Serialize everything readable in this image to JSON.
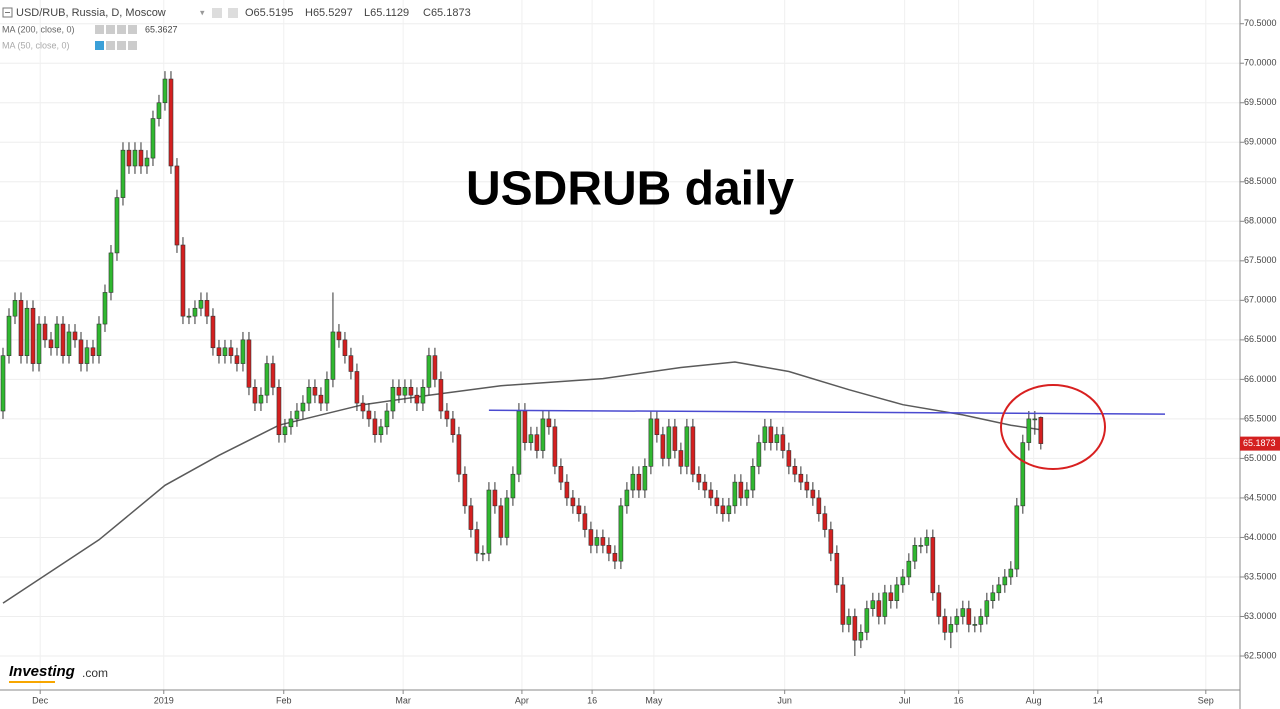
{
  "chart_data": {
    "type": "candlestick",
    "title": "USDRUB daily",
    "header": {
      "symbol": "USD/RUB, Russia, D, Moscow",
      "ohlc": [
        "O65.5195",
        "H65.5297",
        "L65.1129",
        "C65.1873"
      ]
    },
    "brand": {
      "name": "Investing",
      "suffix": ".com"
    },
    "up_color": "#30b830",
    "down_color": "#d42020",
    "candles": [
      [
        65.6,
        66.4,
        65.5,
        66.3
      ],
      [
        66.3,
        66.9,
        66.2,
        66.8
      ],
      [
        66.8,
        67.1,
        66.7,
        67.0
      ],
      [
        67.0,
        67.1,
        66.2,
        66.3
      ],
      [
        66.3,
        67.0,
        66.2,
        66.9
      ],
      [
        66.9,
        67.0,
        66.1,
        66.2
      ],
      [
        66.2,
        66.8,
        66.1,
        66.7
      ],
      [
        66.7,
        66.8,
        66.4,
        66.5
      ],
      [
        66.5,
        66.6,
        66.3,
        66.4
      ],
      [
        66.4,
        66.8,
        66.3,
        66.7
      ],
      [
        66.7,
        66.8,
        66.2,
        66.3
      ],
      [
        66.3,
        66.7,
        66.2,
        66.6
      ],
      [
        66.6,
        66.7,
        66.4,
        66.5
      ],
      [
        66.5,
        66.6,
        66.1,
        66.2
      ],
      [
        66.2,
        66.5,
        66.1,
        66.4
      ],
      [
        66.4,
        66.5,
        66.2,
        66.3
      ],
      [
        66.3,
        66.8,
        66.2,
        66.7
      ],
      [
        66.7,
        67.2,
        66.6,
        67.1
      ],
      [
        67.1,
        67.7,
        67.0,
        67.6
      ],
      [
        67.6,
        68.4,
        67.5,
        68.3
      ],
      [
        68.3,
        69.0,
        68.2,
        68.9
      ],
      [
        68.9,
        69.0,
        68.6,
        68.7
      ],
      [
        68.7,
        69.0,
        68.6,
        68.9
      ],
      [
        68.9,
        69.0,
        68.6,
        68.7
      ],
      [
        68.7,
        68.9,
        68.6,
        68.8
      ],
      [
        68.8,
        69.4,
        68.7,
        69.3
      ],
      [
        69.3,
        69.6,
        69.2,
        69.5
      ],
      [
        69.5,
        69.9,
        69.4,
        69.8
      ],
      [
        69.8,
        69.9,
        68.6,
        68.7
      ],
      [
        68.7,
        68.8,
        67.6,
        67.7
      ],
      [
        67.7,
        67.8,
        66.7,
        66.8
      ],
      [
        66.8,
        66.9,
        66.7,
        66.8
      ],
      [
        66.8,
        67.0,
        66.7,
        66.9
      ],
      [
        66.9,
        67.1,
        66.8,
        67.0
      ],
      [
        67.0,
        67.1,
        66.7,
        66.8
      ],
      [
        66.8,
        66.9,
        66.3,
        66.4
      ],
      [
        66.4,
        66.5,
        66.2,
        66.3
      ],
      [
        66.3,
        66.5,
        66.2,
        66.4
      ],
      [
        66.4,
        66.5,
        66.2,
        66.3
      ],
      [
        66.3,
        66.4,
        66.1,
        66.2
      ],
      [
        66.2,
        66.6,
        66.1,
        66.5
      ],
      [
        66.5,
        66.6,
        65.8,
        65.9
      ],
      [
        65.9,
        66.0,
        65.6,
        65.7
      ],
      [
        65.7,
        65.9,
        65.6,
        65.8
      ],
      [
        65.8,
        66.3,
        65.7,
        66.2
      ],
      [
        66.2,
        66.3,
        65.8,
        65.9
      ],
      [
        65.9,
        66.0,
        65.2,
        65.3
      ],
      [
        65.3,
        65.5,
        65.2,
        65.4
      ],
      [
        65.4,
        65.6,
        65.3,
        65.5
      ],
      [
        65.5,
        65.7,
        65.4,
        65.6
      ],
      [
        65.6,
        65.8,
        65.5,
        65.7
      ],
      [
        65.7,
        66.0,
        65.6,
        65.9
      ],
      [
        65.9,
        66.0,
        65.7,
        65.8
      ],
      [
        65.8,
        65.9,
        65.6,
        65.7
      ],
      [
        65.7,
        66.1,
        65.6,
        66.0
      ],
      [
        66.0,
        67.1,
        65.9,
        66.6
      ],
      [
        66.6,
        66.7,
        66.4,
        66.5
      ],
      [
        66.5,
        66.6,
        66.2,
        66.3
      ],
      [
        66.3,
        66.4,
        66.0,
        66.1
      ],
      [
        66.1,
        66.2,
        65.6,
        65.7
      ],
      [
        65.7,
        65.8,
        65.5,
        65.6
      ],
      [
        65.6,
        65.7,
        65.4,
        65.5
      ],
      [
        65.5,
        65.6,
        65.2,
        65.3
      ],
      [
        65.3,
        65.5,
        65.2,
        65.4
      ],
      [
        65.4,
        65.7,
        65.3,
        65.6
      ],
      [
        65.6,
        66.0,
        65.5,
        65.9
      ],
      [
        65.9,
        66.0,
        65.7,
        65.8
      ],
      [
        65.8,
        66.0,
        65.7,
        65.9
      ],
      [
        65.9,
        66.0,
        65.7,
        65.8
      ],
      [
        65.8,
        65.9,
        65.6,
        65.7
      ],
      [
        65.7,
        66.0,
        65.6,
        65.9
      ],
      [
        65.9,
        66.4,
        65.8,
        66.3
      ],
      [
        66.3,
        66.4,
        65.9,
        66.0
      ],
      [
        66.0,
        66.1,
        65.5,
        65.6
      ],
      [
        65.6,
        65.7,
        65.4,
        65.5
      ],
      [
        65.5,
        65.6,
        65.2,
        65.3
      ],
      [
        65.3,
        65.4,
        64.7,
        64.8
      ],
      [
        64.8,
        64.9,
        64.3,
        64.4
      ],
      [
        64.4,
        64.5,
        64.0,
        64.1
      ],
      [
        64.1,
        64.2,
        63.7,
        63.8
      ],
      [
        63.8,
        63.9,
        63.7,
        63.8
      ],
      [
        63.8,
        64.7,
        63.7,
        64.6
      ],
      [
        64.6,
        64.7,
        64.3,
        64.4
      ],
      [
        64.4,
        64.5,
        63.9,
        64.0
      ],
      [
        64.0,
        64.6,
        63.9,
        64.5
      ],
      [
        64.5,
        64.9,
        64.4,
        64.8
      ],
      [
        64.8,
        65.7,
        64.7,
        65.6
      ],
      [
        65.6,
        65.7,
        65.1,
        65.2
      ],
      [
        65.2,
        65.4,
        65.1,
        65.3
      ],
      [
        65.3,
        65.4,
        65.0,
        65.1
      ],
      [
        65.1,
        65.6,
        65.0,
        65.5
      ],
      [
        65.5,
        65.6,
        65.3,
        65.4
      ],
      [
        65.4,
        65.5,
        64.8,
        64.9
      ],
      [
        64.9,
        65.0,
        64.6,
        64.7
      ],
      [
        64.7,
        64.8,
        64.4,
        64.5
      ],
      [
        64.5,
        64.6,
        64.3,
        64.4
      ],
      [
        64.4,
        64.5,
        64.2,
        64.3
      ],
      [
        64.3,
        64.4,
        64.0,
        64.1
      ],
      [
        64.1,
        64.2,
        63.8,
        63.9
      ],
      [
        63.9,
        64.1,
        63.8,
        64.0
      ],
      [
        64.0,
        64.1,
        63.8,
        63.9
      ],
      [
        63.9,
        64.0,
        63.7,
        63.8
      ],
      [
        63.8,
        63.9,
        63.6,
        63.7
      ],
      [
        63.7,
        64.5,
        63.6,
        64.4
      ],
      [
        64.4,
        64.7,
        64.3,
        64.6
      ],
      [
        64.6,
        64.9,
        64.5,
        64.8
      ],
      [
        64.8,
        64.9,
        64.5,
        64.6
      ],
      [
        64.6,
        65.0,
        64.5,
        64.9
      ],
      [
        64.9,
        65.6,
        64.8,
        65.5
      ],
      [
        65.5,
        65.6,
        65.2,
        65.3
      ],
      [
        65.3,
        65.4,
        64.9,
        65.0
      ],
      [
        65.0,
        65.5,
        64.9,
        65.4
      ],
      [
        65.4,
        65.5,
        65.0,
        65.1
      ],
      [
        65.1,
        65.2,
        64.8,
        64.9
      ],
      [
        64.9,
        65.5,
        64.8,
        65.4
      ],
      [
        65.4,
        65.5,
        64.7,
        64.8
      ],
      [
        64.8,
        64.9,
        64.6,
        64.7
      ],
      [
        64.7,
        64.8,
        64.5,
        64.6
      ],
      [
        64.6,
        64.7,
        64.4,
        64.5
      ],
      [
        64.5,
        64.6,
        64.3,
        64.4
      ],
      [
        64.4,
        64.5,
        64.2,
        64.3
      ],
      [
        64.3,
        64.5,
        64.2,
        64.4
      ],
      [
        64.4,
        64.8,
        64.3,
        64.7
      ],
      [
        64.7,
        64.8,
        64.4,
        64.5
      ],
      [
        64.5,
        64.7,
        64.4,
        64.6
      ],
      [
        64.6,
        65.0,
        64.5,
        64.9
      ],
      [
        64.9,
        65.3,
        64.8,
        65.2
      ],
      [
        65.2,
        65.5,
        65.1,
        65.4
      ],
      [
        65.4,
        65.5,
        65.1,
        65.2
      ],
      [
        65.2,
        65.4,
        65.1,
        65.3
      ],
      [
        65.3,
        65.4,
        65.0,
        65.1
      ],
      [
        65.1,
        65.2,
        64.8,
        64.9
      ],
      [
        64.9,
        65.0,
        64.7,
        64.8
      ],
      [
        64.8,
        64.9,
        64.6,
        64.7
      ],
      [
        64.7,
        64.8,
        64.5,
        64.6
      ],
      [
        64.6,
        64.7,
        64.4,
        64.5
      ],
      [
        64.5,
        64.6,
        64.2,
        64.3
      ],
      [
        64.3,
        64.4,
        64.0,
        64.1
      ],
      [
        64.1,
        64.2,
        63.7,
        63.8
      ],
      [
        63.8,
        63.9,
        63.3,
        63.4
      ],
      [
        63.4,
        63.5,
        62.8,
        62.9
      ],
      [
        62.9,
        63.1,
        62.8,
        63.0
      ],
      [
        63.0,
        63.1,
        62.5,
        62.7
      ],
      [
        62.7,
        62.9,
        62.6,
        62.8
      ],
      [
        62.8,
        63.2,
        62.7,
        63.1
      ],
      [
        63.1,
        63.3,
        63.0,
        63.2
      ],
      [
        63.2,
        63.3,
        62.9,
        63.0
      ],
      [
        63.0,
        63.4,
        62.9,
        63.3
      ],
      [
        63.3,
        63.4,
        63.1,
        63.2
      ],
      [
        63.2,
        63.5,
        63.1,
        63.4
      ],
      [
        63.4,
        63.6,
        63.3,
        63.5
      ],
      [
        63.5,
        63.8,
        63.4,
        63.7
      ],
      [
        63.7,
        64.0,
        63.6,
        63.9
      ],
      [
        63.9,
        64.0,
        63.8,
        63.9
      ],
      [
        63.9,
        64.1,
        63.8,
        64.0
      ],
      [
        64.0,
        64.1,
        63.2,
        63.3
      ],
      [
        63.3,
        63.4,
        62.9,
        63.0
      ],
      [
        63.0,
        63.1,
        62.7,
        62.8
      ],
      [
        62.8,
        63.0,
        62.6,
        62.9
      ],
      [
        62.9,
        63.1,
        62.8,
        63.0
      ],
      [
        63.0,
        63.2,
        62.9,
        63.1
      ],
      [
        63.1,
        63.2,
        62.8,
        62.9
      ],
      [
        62.9,
        63.0,
        62.8,
        62.9
      ],
      [
        62.9,
        63.1,
        62.8,
        63.0
      ],
      [
        63.0,
        63.3,
        62.9,
        63.2
      ],
      [
        63.2,
        63.4,
        63.1,
        63.3
      ],
      [
        63.3,
        63.5,
        63.2,
        63.4
      ],
      [
        63.4,
        63.6,
        63.3,
        63.5
      ],
      [
        63.5,
        63.7,
        63.4,
        63.6
      ],
      [
        63.6,
        64.5,
        63.5,
        64.4
      ],
      [
        64.4,
        65.3,
        64.3,
        65.2
      ],
      [
        65.2,
        65.6,
        65.1,
        65.5
      ],
      [
        65.5,
        65.6,
        65.3,
        65.5
      ],
      [
        65.5195,
        65.5297,
        65.1129,
        65.1873
      ]
    ],
    "indicators": [
      {
        "name": "MA (200, close, 0)",
        "value_label": "65.3627",
        "color": "#5a5a5a",
        "x": [
          0,
          16,
          27,
          36,
          46,
          60,
          71,
          83,
          100,
          113,
          122,
          131,
          141,
          150,
          160,
          168,
          173
        ],
        "values": [
          63.17,
          63.97,
          64.66,
          65.04,
          65.42,
          65.68,
          65.8,
          65.92,
          66.01,
          66.15,
          66.22,
          66.1,
          65.87,
          65.68,
          65.55,
          65.42,
          65.3627
        ]
      },
      {
        "name": "MA (50, close, 0)"
      }
    ],
    "trendline": {
      "color": "#4a4ad0",
      "x": [
        81,
        193.7
      ],
      "values": [
        65.61,
        65.56
      ]
    },
    "xlim": [
      -0.5,
      206.2
    ],
    "xticks": [
      {
        "value": 6.2,
        "label": "Dec"
      },
      {
        "value": 26.8,
        "label": "2019"
      },
      {
        "value": 46.8,
        "label": "Feb"
      },
      {
        "value": 66.7,
        "label": "Mar"
      },
      {
        "value": 86.5,
        "label": "Apr"
      },
      {
        "value": 98.2,
        "label": "16"
      },
      {
        "value": 108.5,
        "label": "May"
      },
      {
        "value": 130.3,
        "label": "Jun"
      },
      {
        "value": 150.3,
        "label": "Jul"
      },
      {
        "value": 159.3,
        "label": "16"
      },
      {
        "value": 171.8,
        "label": "Aug"
      },
      {
        "value": 182.5,
        "label": "14"
      },
      {
        "value": 200.5,
        "label": "Sep"
      }
    ],
    "ylim": [
      62.07,
      70.8
    ],
    "yticks": [
      {
        "value": 62.5,
        "label": "62.5000"
      },
      {
        "value": 63,
        "label": "63.0000"
      },
      {
        "value": 63.5,
        "label": "63.5000"
      },
      {
        "value": 64,
        "label": "64.0000"
      },
      {
        "value": 64.5,
        "label": "64.5000"
      },
      {
        "value": 65,
        "label": "65.0000"
      },
      {
        "value": 65.5,
        "label": "65.5000"
      },
      {
        "value": 66,
        "label": "66.0000"
      },
      {
        "value": 66.5,
        "label": "66.5000"
      },
      {
        "value": 67,
        "label": "67.0000"
      },
      {
        "value": 67.5,
        "label": "67.5000"
      },
      {
        "value": 68,
        "label": "68.0000"
      },
      {
        "value": 68.5,
        "label": "68.5000"
      },
      {
        "value": 69,
        "label": "69.0000"
      },
      {
        "value": 69.5,
        "label": "69.5000"
      },
      {
        "value": 70,
        "label": "70.0000"
      },
      {
        "value": 70.5,
        "label": "70.5000"
      }
    ],
    "grid": true
  }
}
